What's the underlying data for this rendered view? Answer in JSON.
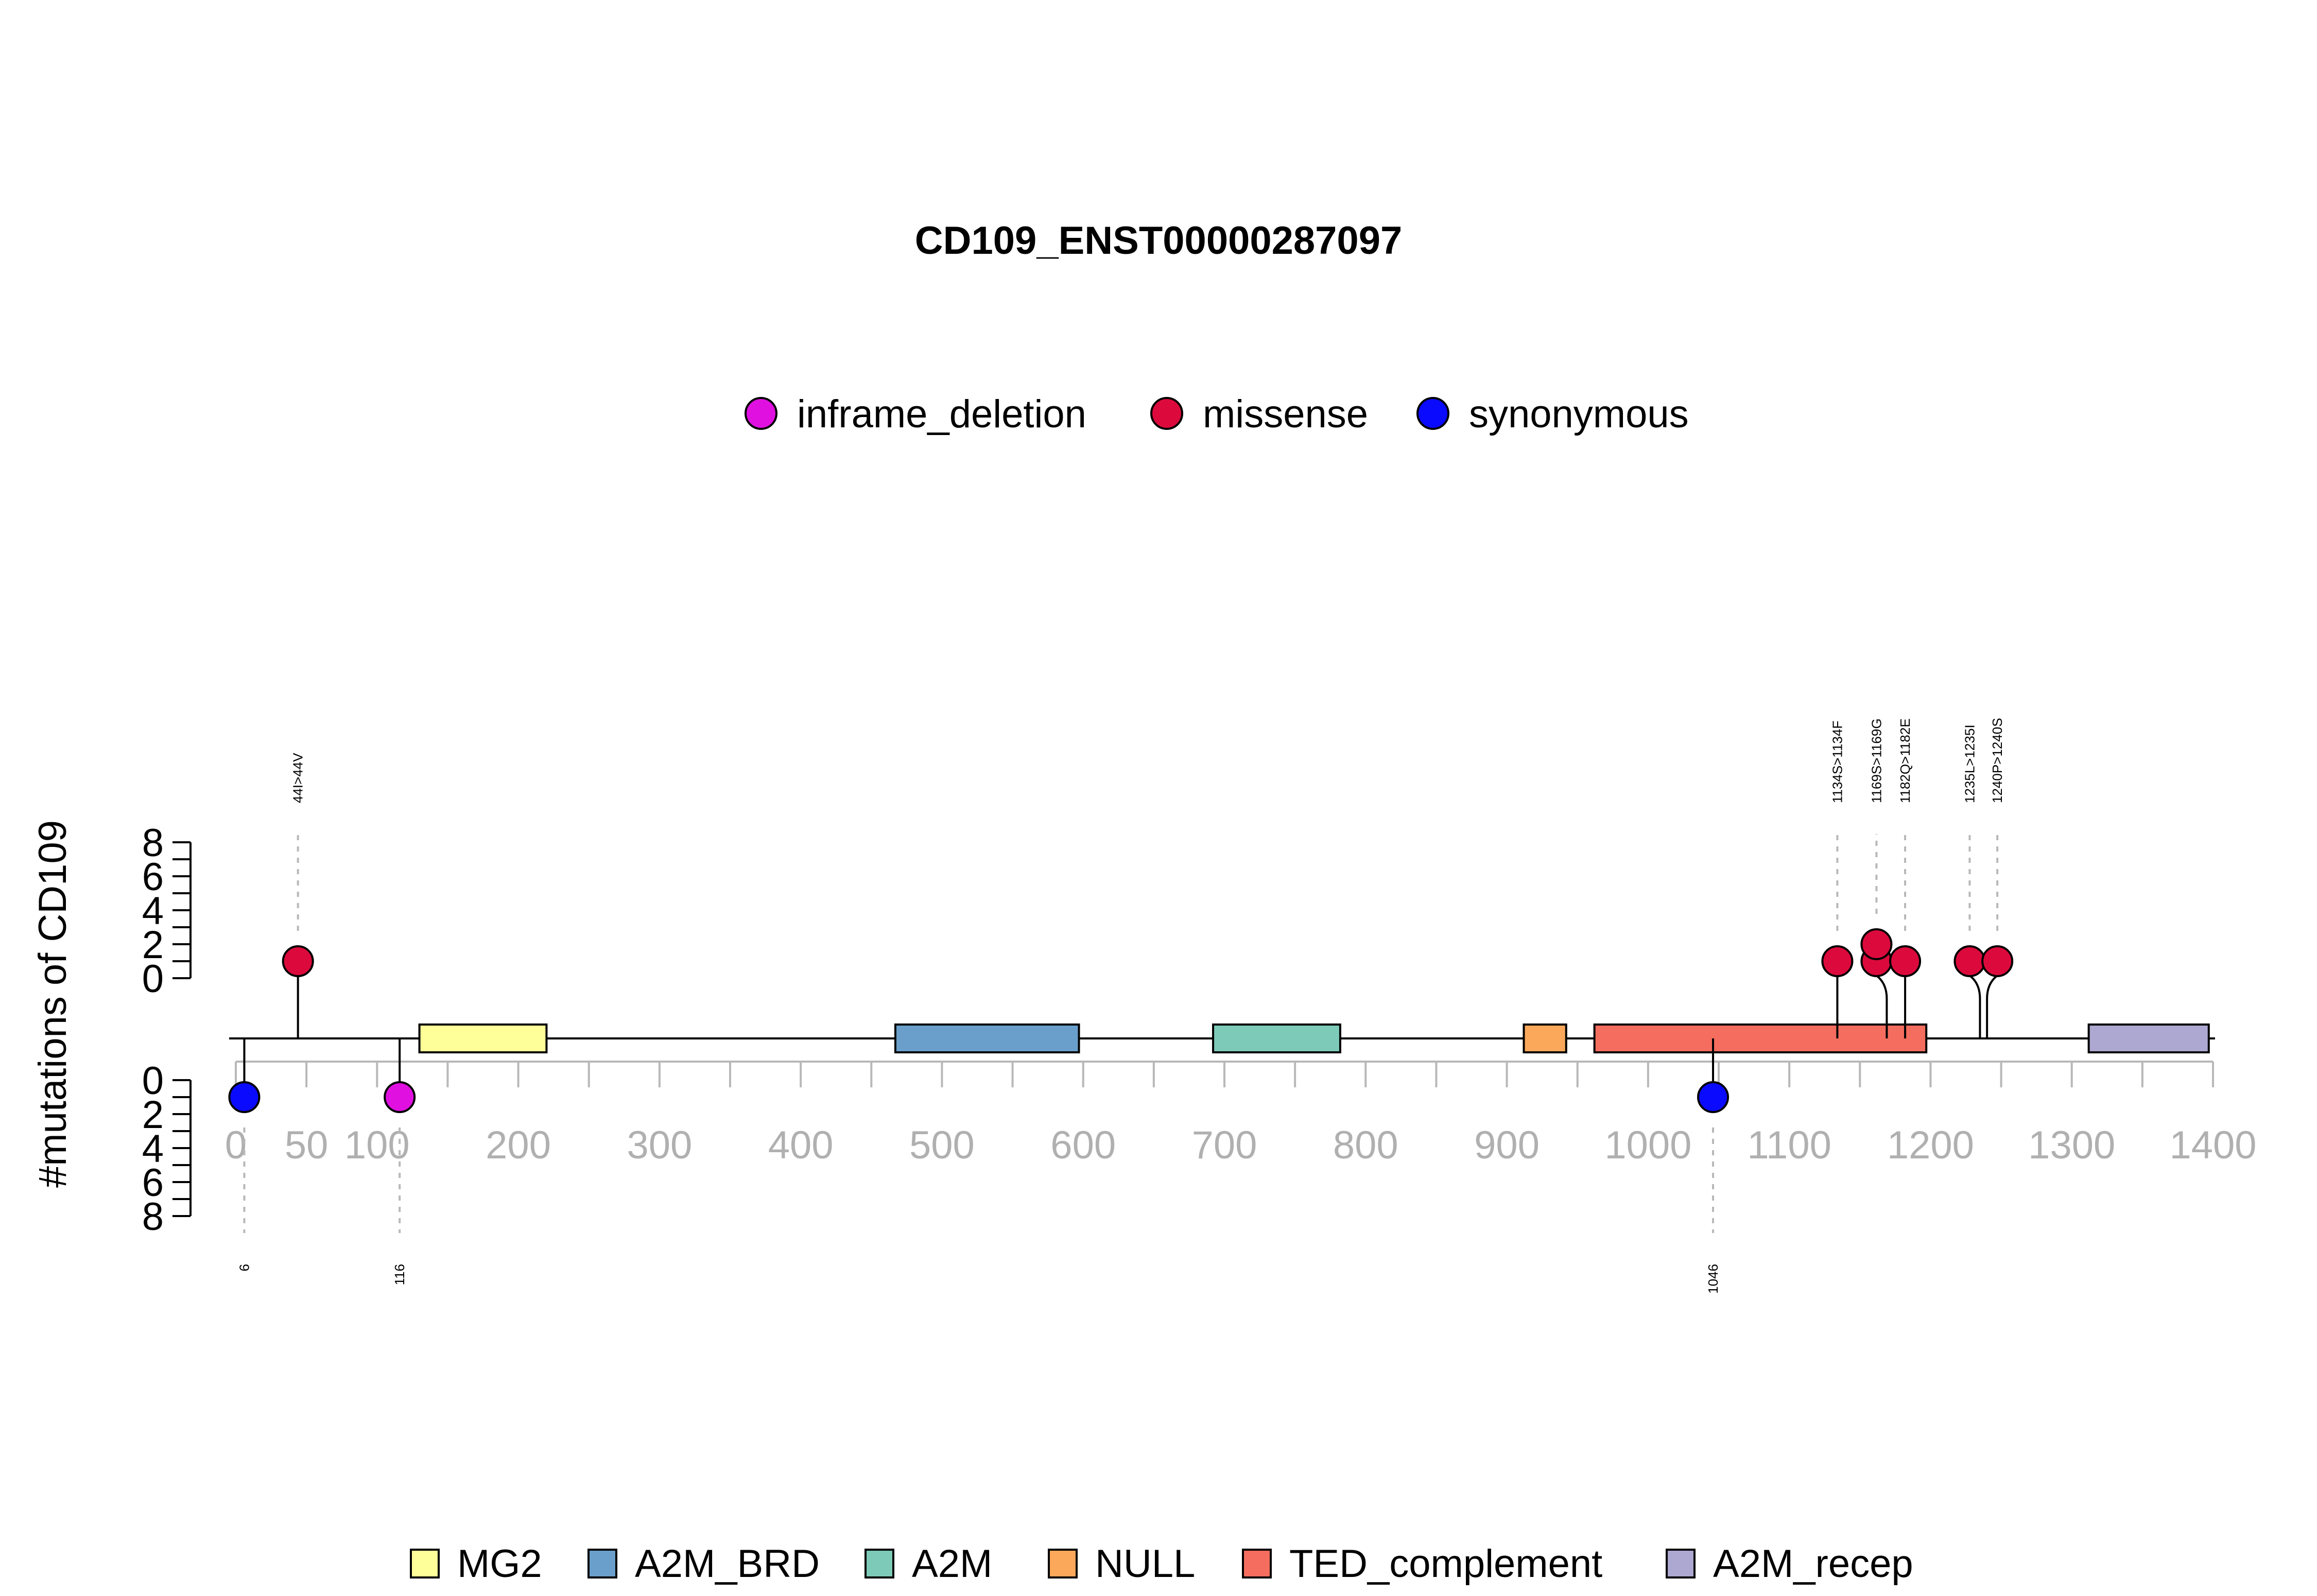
{
  "chart_data": {
    "type": "lollipop",
    "title": "CD109_ENST00000287097",
    "ylabel": "#mutations of CD109",
    "protein_length": 1445,
    "xlim": [
      0,
      1400
    ],
    "x_ticks": [
      0,
      50,
      100,
      200,
      300,
      400,
      500,
      600,
      700,
      800,
      900,
      1000,
      1100,
      1200,
      1300,
      1400
    ],
    "y_ticks": [
      0,
      2,
      4,
      6,
      8
    ],
    "ylim": [
      0,
      8
    ],
    "mutation_legend": [
      {
        "name": "inframe_deletion",
        "color": "#e010e0"
      },
      {
        "name": "missense",
        "color": "#dc0a3c"
      },
      {
        "name": "synonymous",
        "color": "#0a0aff"
      }
    ],
    "domains": [
      {
        "name": "MG2",
        "start": 130,
        "end": 220,
        "color": "#ffff99"
      },
      {
        "name": "A2M_BRD",
        "start": 467,
        "end": 597,
        "color": "#6a9fcb"
      },
      {
        "name": "A2M",
        "start": 692,
        "end": 782,
        "color": "#7ecab8"
      },
      {
        "name": "NULL",
        "start": 912,
        "end": 942,
        "color": "#fba85a"
      },
      {
        "name": "TED_complement",
        "start": 962,
        "end": 1197,
        "color": "#f46d5e"
      },
      {
        "name": "A2M_recep",
        "start": 1312,
        "end": 1397,
        "color": "#ada8d1"
      }
    ],
    "domain_legend": [
      "MG2",
      "A2M_BRD",
      "A2M",
      "NULL",
      "TED_complement",
      "A2M_recep"
    ],
    "mutations_top": [
      {
        "pos": 44,
        "label": "44I>44V",
        "type": "missense",
        "count": 1
      },
      {
        "pos": 1134,
        "label": "1134S>1134F",
        "type": "missense",
        "count": 1
      },
      {
        "pos": 1169,
        "label": "1169S>1169G",
        "type": "missense",
        "count": 2
      },
      {
        "pos": 1182,
        "label": "1182Q>1182E",
        "type": "missense",
        "count": 1
      },
      {
        "pos": 1235,
        "label": "1235L>1235I",
        "type": "missense",
        "count": 1
      },
      {
        "pos": 1240,
        "label": "1240P>1240S",
        "type": "missense",
        "count": 1
      }
    ],
    "mutations_bottom": [
      {
        "pos": 6,
        "label": "6",
        "type": "synonymous",
        "count": 1
      },
      {
        "pos": 116,
        "label": "116",
        "type": "inframe_deletion",
        "count": 1
      },
      {
        "pos": 1046,
        "label": "1046",
        "type": "synonymous",
        "count": 1
      }
    ]
  }
}
